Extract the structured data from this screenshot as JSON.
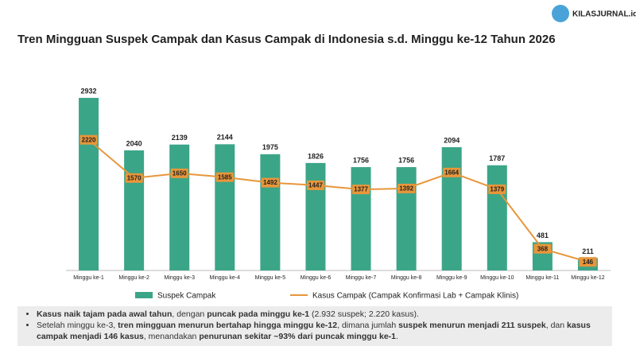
{
  "logo": "KILASJURNAL.id",
  "chart_data": {
    "type": "bar",
    "title": "Tren Mingguan Suspek Campak dan Kasus Campak di Indonesia s.d. Minggu ke-12 Tahun 2026",
    "categories": [
      "Minggu ke-1",
      "Minggu ke-2",
      "Minggu ke-3",
      "Minggu ke-4",
      "Minggu ke-5",
      "Minggu ke-6",
      "Minggu ke-7",
      "Minggu ke-8",
      "Minggu ke-9",
      "Minggu ke-10",
      "Minggu ke-11",
      "Minggu ke-12"
    ],
    "series": [
      {
        "name": "Suspek Campak",
        "type": "bar",
        "color": "#3ba588",
        "values": [
          2932,
          2040,
          2139,
          2144,
          1975,
          1826,
          1756,
          1756,
          2094,
          1787,
          481,
          211
        ]
      },
      {
        "name": "Kasus Campak (Campak Konfirmasi Lab + Campak Klinis)",
        "type": "line",
        "color": "#e8963a",
        "values": [
          2220,
          1570,
          1650,
          1585,
          1492,
          1447,
          1377,
          1392,
          1664,
          1379,
          368,
          146
        ]
      }
    ],
    "ylim": [
      0,
      3000
    ]
  },
  "notes": [
    [
      {
        "text": "Kasus naik tajam pada awal tahun",
        "bold": true
      },
      {
        "text": ", dengan ",
        "bold": false
      },
      {
        "text": "puncak pada minggu ke-1",
        "bold": true
      },
      {
        "text": " (2.932 suspek; 2.220 kasus).",
        "bold": false
      }
    ],
    [
      {
        "text": "Setelah minggu ke-3, ",
        "bold": false
      },
      {
        "text": "tren mingguan menurun bertahap hingga minggu ke-12",
        "bold": true
      },
      {
        "text": ", dimana jumlah ",
        "bold": false
      },
      {
        "text": "suspek menurun menjadi 211 suspek",
        "bold": true
      },
      {
        "text": ", dan ",
        "bold": false
      },
      {
        "text": "kasus campak menjadi 146 kasus",
        "bold": true
      },
      {
        "text": ", menandakan ",
        "bold": false
      },
      {
        "text": "penurunan sekitar ~93% dari puncak minggu ke-1",
        "bold": true
      },
      {
        "text": ".",
        "bold": false
      }
    ]
  ]
}
